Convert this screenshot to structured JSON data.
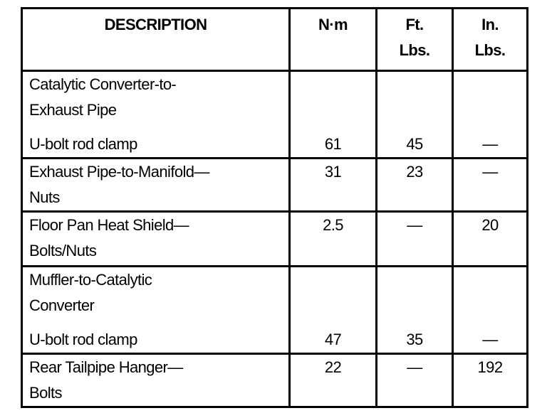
{
  "table": {
    "headers": [
      {
        "line1": "DESCRIPTION",
        "line2": ""
      },
      {
        "line1": "N·m",
        "line2": ""
      },
      {
        "line1": "Ft.",
        "line2": "Lbs."
      },
      {
        "line1": "In.",
        "line2": "Lbs."
      }
    ],
    "rows": [
      {
        "heading": [
          "Catalytic Converter-to-",
          "Exhaust Pipe"
        ],
        "item": "U-bolt rod clamp",
        "nm": "61",
        "ft_lbs": "45",
        "in_lbs": "—"
      },
      {
        "desc": [
          "Exhaust Pipe-to-Manifold—",
          "Nuts"
        ],
        "nm": "31",
        "ft_lbs": "23",
        "in_lbs": "—"
      },
      {
        "desc": [
          "Floor Pan Heat Shield—",
          "Bolts/Nuts"
        ],
        "nm": "2.5",
        "ft_lbs": "—",
        "in_lbs": "20"
      },
      {
        "heading": [
          "Muffler-to-Catalytic",
          "Converter"
        ],
        "item": "U-bolt rod clamp",
        "nm": "47",
        "ft_lbs": "35",
        "in_lbs": "—"
      },
      {
        "desc": [
          "Rear Tailpipe Hanger—",
          "Bolts"
        ],
        "nm": "22",
        "ft_lbs": "—",
        "in_lbs": "192"
      }
    ]
  }
}
